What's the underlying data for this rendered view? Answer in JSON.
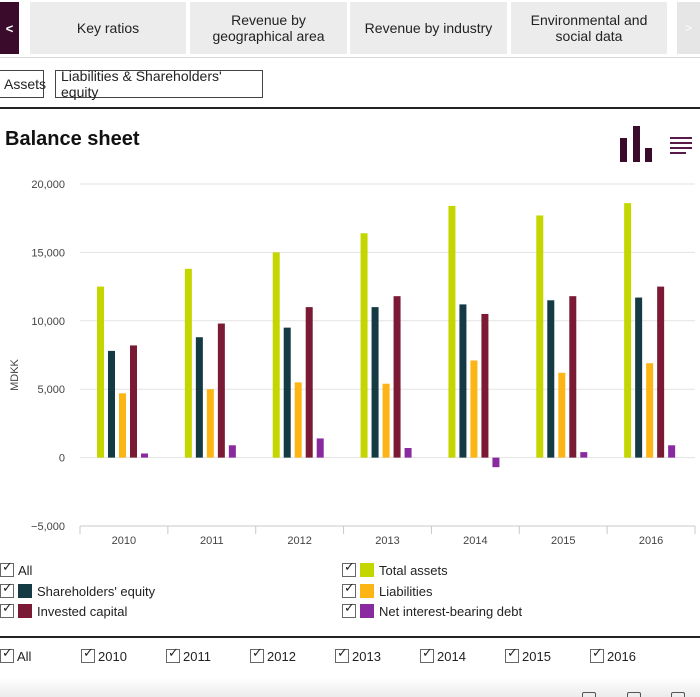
{
  "nav": {
    "prev_label": "<",
    "next_label": ">",
    "tabs": [
      {
        "label": "Key ratios"
      },
      {
        "label": "Revenue by geographical area"
      },
      {
        "label": "Revenue by industry"
      },
      {
        "label": "Environmental and social data"
      }
    ]
  },
  "subtabs": [
    {
      "label": "Assets"
    },
    {
      "label": "Liabilities & Shareholders' equity"
    }
  ],
  "page": {
    "title": "Balance sheet"
  },
  "icons": {
    "chart_toggle": "bar-chart-icon",
    "menu": "hamburger-menu-icon"
  },
  "chart_data": {
    "type": "bar",
    "title": "Balance sheet",
    "xlabel": "",
    "ylabel": "MDKK",
    "ylim": [
      -5000,
      20000
    ],
    "yticks": [
      20000,
      15000,
      10000,
      5000,
      0,
      -5000
    ],
    "ytick_labels": [
      "20,000",
      "15,000",
      "10,000",
      "5,000",
      "0",
      "−5,000"
    ],
    "grid": true,
    "legend_position": "bottom",
    "categories": [
      "2010",
      "2011",
      "2012",
      "2013",
      "2014",
      "2015",
      "2016"
    ],
    "series": [
      {
        "name": "Total assets",
        "color": "#c4d600",
        "values": [
          12500,
          13800,
          15000,
          16400,
          18400,
          17700,
          18600
        ]
      },
      {
        "name": "Shareholders' equity",
        "color": "#143b44",
        "values": [
          7800,
          8800,
          9500,
          11000,
          11200,
          11500,
          11700
        ]
      },
      {
        "name": "Liabilities",
        "color": "#fdb515",
        "values": [
          4700,
          5000,
          5500,
          5400,
          7100,
          6200,
          6900
        ]
      },
      {
        "name": "Invested capital",
        "color": "#7b1a34",
        "values": [
          8200,
          9800,
          11000,
          11800,
          10500,
          11800,
          12500
        ]
      },
      {
        "name": "Net interest-bearing debt",
        "color": "#8a2aa0",
        "values": [
          300,
          900,
          1400,
          700,
          -700,
          400,
          900
        ]
      }
    ]
  },
  "legend": {
    "all_label": "All"
  },
  "year_filter": {
    "all_label": "All",
    "years": [
      "2010",
      "2011",
      "2012",
      "2013",
      "2014",
      "2015",
      "2016"
    ]
  }
}
